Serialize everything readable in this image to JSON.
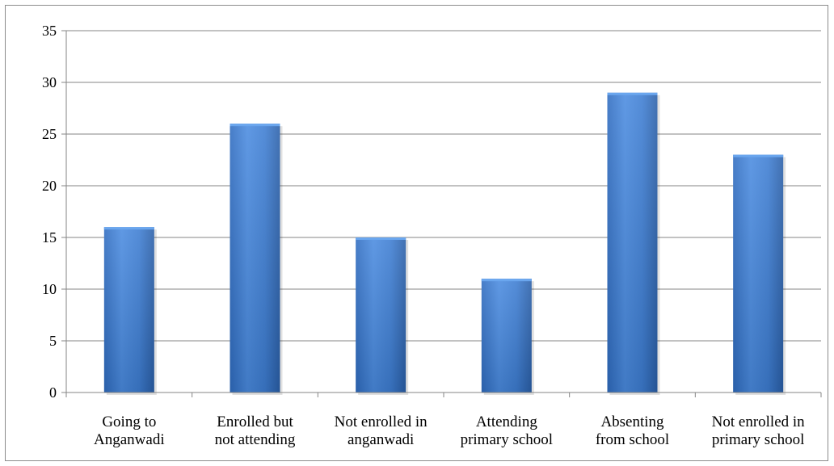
{
  "chart_data": {
    "type": "bar",
    "title": "",
    "xlabel": "",
    "ylabel": "",
    "ylim": [
      0,
      35
    ],
    "y_ticks": [
      0,
      5,
      10,
      15,
      20,
      25,
      30,
      35
    ],
    "grid": true,
    "legend": "none",
    "categories": [
      "Going to Anganwadi",
      "Enrolled but not attending",
      "Not enrolled in anganwadi",
      "Attending primary school",
      "Absenting from school",
      "Not enrolled in primary school"
    ],
    "category_lines": [
      [
        "Going to",
        "Anganwadi"
      ],
      [
        "Enrolled but",
        "not attending"
      ],
      [
        "Not enrolled in",
        "anganwadi"
      ],
      [
        "Attending",
        "primary school"
      ],
      [
        "Absenting",
        "from school"
      ],
      [
        "Not enrolled in",
        "primary school"
      ]
    ],
    "values": [
      16,
      26,
      15,
      11,
      29,
      23
    ],
    "colors": {
      "bar_light": "#5b9be6",
      "bar_mid": "#3f7fd0",
      "bar_dark": "#2a5fa8",
      "bar_top": "#6aa6ee",
      "gridline": "#868686",
      "axis": "#868686"
    }
  }
}
